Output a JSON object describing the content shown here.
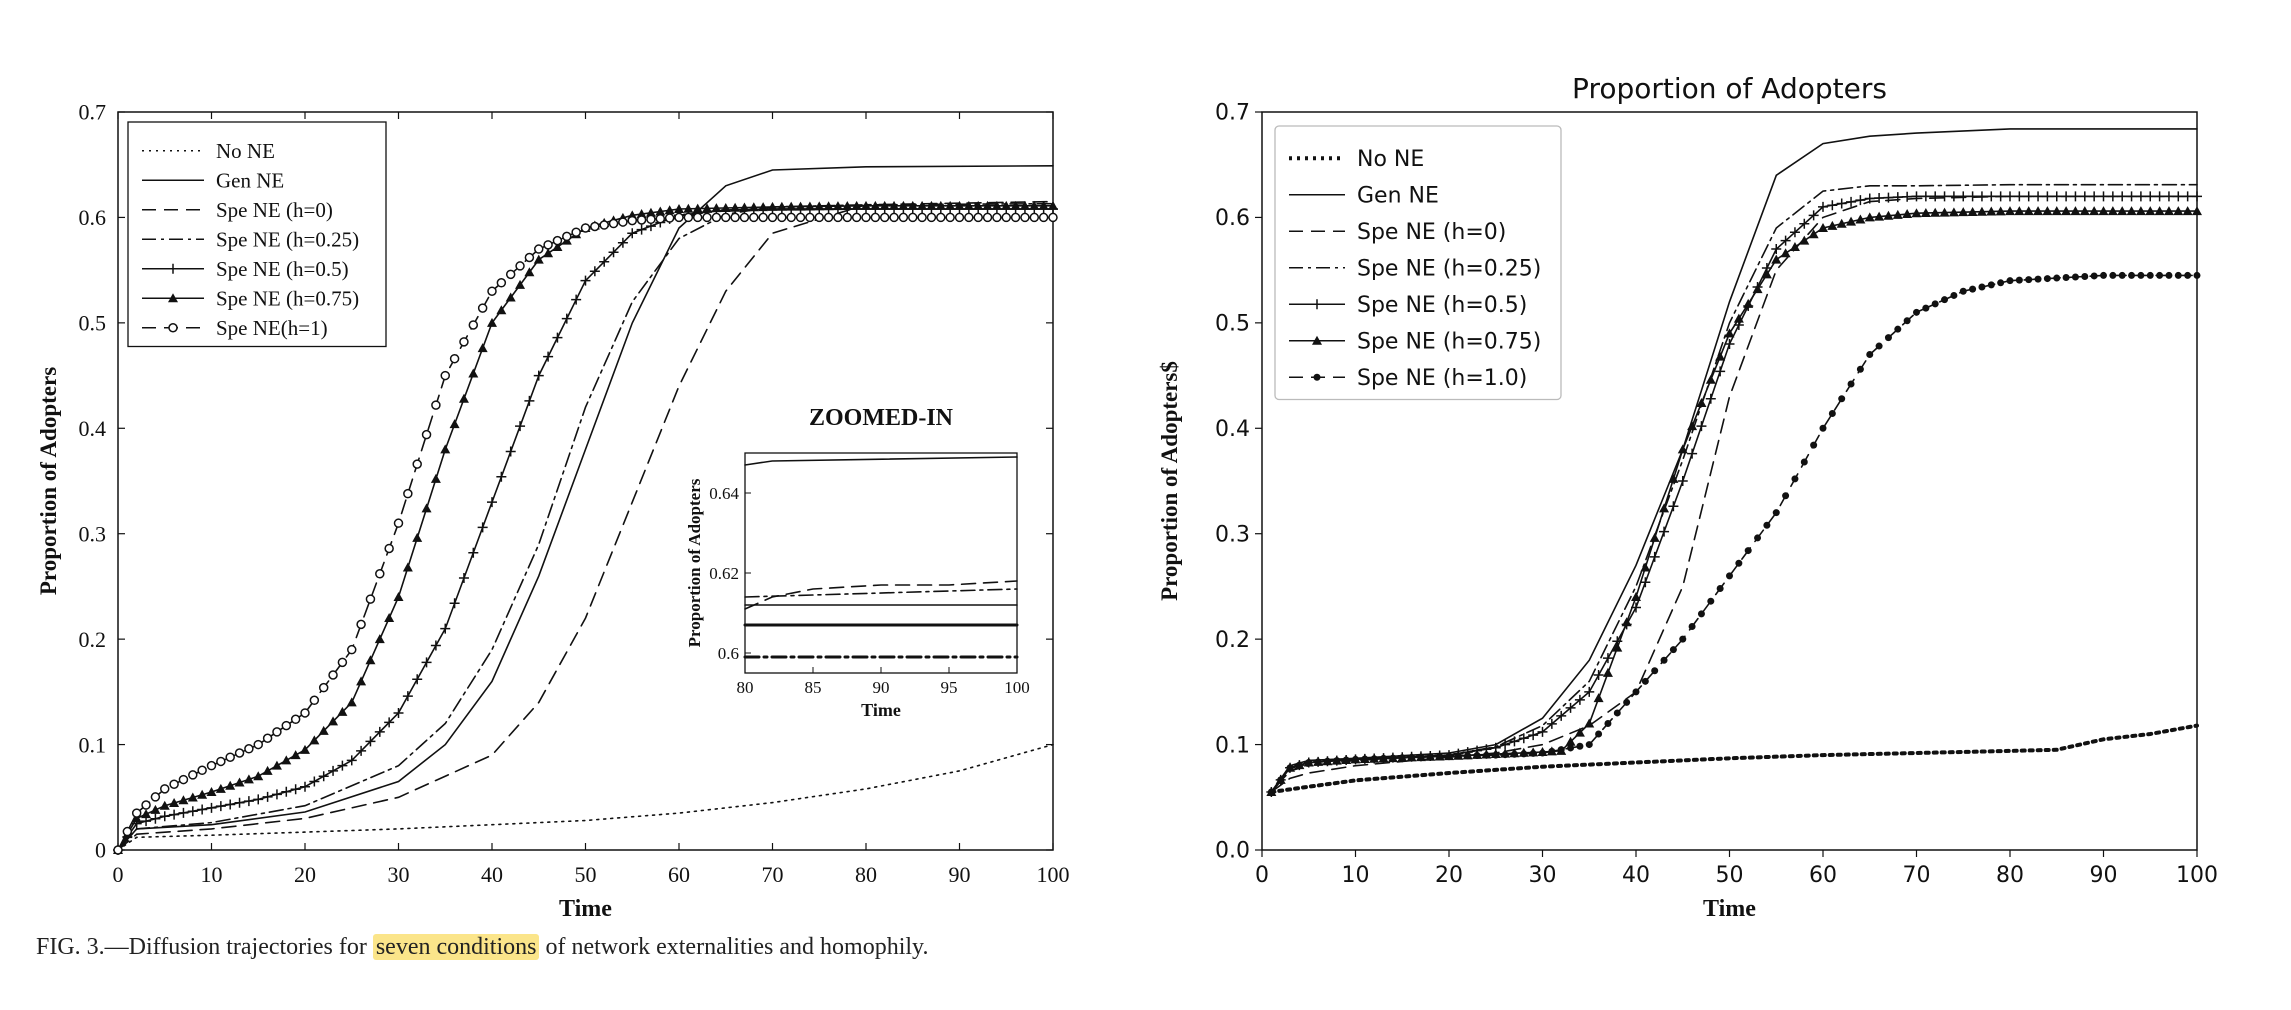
{
  "caption": {
    "prefix": "FIG. 3.—Diffusion trajectories for ",
    "highlight": "seven conditions",
    "suffix": " of network externalities and homophily."
  },
  "colors": {
    "line": "#111111",
    "highlight": "#fbe58a"
  },
  "chart_data": [
    {
      "type": "line",
      "title": "",
      "xlabel": "Time",
      "ylabel": "Proportion of Adopters",
      "xlim": [
        0,
        100
      ],
      "ylim": [
        0,
        0.7
      ],
      "xticks": [
        "0",
        "10",
        "20",
        "30",
        "40",
        "50",
        "60",
        "70",
        "80",
        "90",
        "100"
      ],
      "yticks": [
        "0",
        "0.1",
        "0.2",
        "0.3",
        "0.4",
        "0.5",
        "0.6",
        "0.7"
      ],
      "grid": false,
      "legend_position": "upper-left",
      "series": [
        {
          "name": "No NE",
          "style": "dotted",
          "x": [
            0,
            2,
            10,
            20,
            30,
            40,
            50,
            60,
            70,
            80,
            90,
            100
          ],
          "y": [
            0,
            0.012,
            0.014,
            0.017,
            0.02,
            0.024,
            0.028,
            0.035,
            0.045,
            0.058,
            0.075,
            0.1
          ]
        },
        {
          "name": "Gen NE",
          "style": "solid",
          "x": [
            0,
            2,
            10,
            20,
            30,
            35,
            40,
            45,
            50,
            55,
            60,
            65,
            70,
            80,
            100
          ],
          "y": [
            0,
            0.02,
            0.024,
            0.036,
            0.065,
            0.1,
            0.16,
            0.26,
            0.38,
            0.5,
            0.59,
            0.63,
            0.645,
            0.648,
            0.649
          ]
        },
        {
          "name": "Spe NE (h=0)",
          "style": "dashed",
          "x": [
            0,
            2,
            10,
            20,
            30,
            40,
            45,
            50,
            55,
            60,
            65,
            70,
            80,
            100
          ],
          "y": [
            0,
            0.015,
            0.02,
            0.03,
            0.05,
            0.09,
            0.14,
            0.22,
            0.33,
            0.44,
            0.53,
            0.585,
            0.612,
            0.615
          ]
        },
        {
          "name": "Spe NE (h=0.25)",
          "style": "dashdot",
          "x": [
            0,
            2,
            10,
            20,
            30,
            35,
            40,
            45,
            50,
            55,
            60,
            65,
            70,
            80,
            100
          ],
          "y": [
            0,
            0.02,
            0.026,
            0.042,
            0.08,
            0.12,
            0.19,
            0.29,
            0.42,
            0.52,
            0.58,
            0.603,
            0.61,
            0.612,
            0.613
          ]
        },
        {
          "name": "Spe NE (h=0.5)",
          "style": "solid-plus",
          "x": [
            0,
            2,
            5,
            10,
            15,
            20,
            25,
            30,
            35,
            40,
            45,
            50,
            55,
            60,
            65,
            70,
            80,
            100
          ],
          "y": [
            0,
            0.025,
            0.032,
            0.04,
            0.048,
            0.06,
            0.085,
            0.13,
            0.21,
            0.33,
            0.45,
            0.54,
            0.585,
            0.602,
            0.607,
            0.608,
            0.608,
            0.608
          ]
        },
        {
          "name": "Spe NE (h=0.75)",
          "style": "solid-triangle",
          "x": [
            0,
            2,
            5,
            10,
            15,
            20,
            25,
            30,
            35,
            40,
            45,
            50,
            55,
            60,
            70,
            80,
            100
          ],
          "y": [
            0,
            0.03,
            0.042,
            0.055,
            0.07,
            0.095,
            0.14,
            0.24,
            0.38,
            0.5,
            0.56,
            0.59,
            0.602,
            0.608,
            0.61,
            0.611,
            0.611
          ]
        },
        {
          "name": "Spe NE(h=1)",
          "style": "dashed-circle",
          "x": [
            0,
            2,
            5,
            10,
            15,
            20,
            25,
            30,
            35,
            40,
            45,
            50,
            55,
            60,
            70,
            80,
            100
          ],
          "y": [
            0,
            0.035,
            0.058,
            0.08,
            0.1,
            0.13,
            0.19,
            0.31,
            0.45,
            0.53,
            0.57,
            0.59,
            0.597,
            0.6,
            0.6,
            0.6,
            0.6
          ]
        }
      ],
      "inset": {
        "title": "ZOOMED-IN",
        "xlabel": "Time",
        "ylabel": "Proportion of Adopters",
        "xlim": [
          80,
          100
        ],
        "ylim": [
          0.595,
          0.65
        ],
        "xticks": [
          "80",
          "85",
          "90",
          "95",
          "100"
        ],
        "yticks": [
          "0.6",
          "0.62",
          "0.64"
        ],
        "series": [
          {
            "style": "solid",
            "x": [
              80,
              82,
              100
            ],
            "y": [
              0.647,
              0.648,
              0.649
            ]
          },
          {
            "style": "dashed",
            "x": [
              80,
              82,
              85,
              90,
              95,
              100
            ],
            "y": [
              0.611,
              0.614,
              0.616,
              0.617,
              0.617,
              0.618
            ]
          },
          {
            "style": "dashdot",
            "x": [
              80,
              100
            ],
            "y": [
              0.614,
              0.616
            ]
          },
          {
            "style": "solid",
            "x": [
              80,
              100
            ],
            "y": [
              0.612,
              0.612
            ]
          },
          {
            "style": "solid-thick",
            "x": [
              80,
              100
            ],
            "y": [
              0.607,
              0.607
            ]
          },
          {
            "style": "dashdot-thick",
            "x": [
              80,
              100
            ],
            "y": [
              0.599,
              0.599
            ]
          }
        ]
      }
    },
    {
      "type": "line",
      "title": "Proportion of Adopters",
      "xlabel": "Time",
      "ylabel": "Proportion of Adopters$",
      "xlim": [
        0,
        100
      ],
      "ylim": [
        0,
        0.7
      ],
      "xticks": [
        "0",
        "10",
        "20",
        "30",
        "40",
        "50",
        "60",
        "70",
        "80",
        "90",
        "100"
      ],
      "yticks": [
        "0.0",
        "0.1",
        "0.2",
        "0.3",
        "0.4",
        "0.5",
        "0.6",
        "0.7"
      ],
      "grid": false,
      "legend_position": "upper-left",
      "series": [
        {
          "name": "No NE",
          "style": "dotted-thick",
          "x": [
            1,
            5,
            10,
            20,
            30,
            40,
            50,
            60,
            70,
            80,
            85,
            90,
            95,
            100
          ],
          "y": [
            0.055,
            0.06,
            0.066,
            0.073,
            0.079,
            0.083,
            0.087,
            0.09,
            0.092,
            0.094,
            0.095,
            0.105,
            0.11,
            0.118
          ]
        },
        {
          "name": "Gen NE",
          "style": "solid",
          "x": [
            1,
            3,
            5,
            10,
            20,
            25,
            30,
            35,
            40,
            45,
            50,
            55,
            60,
            65,
            70,
            80,
            100
          ],
          "y": [
            0.055,
            0.08,
            0.085,
            0.087,
            0.092,
            0.1,
            0.125,
            0.18,
            0.27,
            0.38,
            0.52,
            0.64,
            0.67,
            0.677,
            0.68,
            0.684,
            0.684
          ]
        },
        {
          "name": "Spe NE (h=0)",
          "style": "dashed",
          "x": [
            1,
            3,
            5,
            10,
            20,
            25,
            30,
            35,
            40,
            45,
            50,
            55,
            60,
            65,
            70,
            80,
            100
          ],
          "y": [
            0.055,
            0.068,
            0.073,
            0.08,
            0.088,
            0.092,
            0.1,
            0.118,
            0.15,
            0.25,
            0.43,
            0.55,
            0.6,
            0.615,
            0.618,
            0.62,
            0.62
          ]
        },
        {
          "name": "Spe NE (h=0.25)",
          "style": "dashdot",
          "x": [
            1,
            3,
            5,
            10,
            20,
            25,
            30,
            35,
            40,
            45,
            50,
            55,
            60,
            65,
            70,
            80,
            100
          ],
          "y": [
            0.055,
            0.075,
            0.08,
            0.085,
            0.09,
            0.098,
            0.118,
            0.16,
            0.25,
            0.37,
            0.5,
            0.59,
            0.625,
            0.63,
            0.63,
            0.631,
            0.631
          ]
        },
        {
          "name": "Spe NE (h=0.5)",
          "style": "solid-plus",
          "x": [
            1,
            3,
            5,
            10,
            20,
            25,
            30,
            35,
            40,
            45,
            50,
            55,
            60,
            65,
            70,
            80,
            100
          ],
          "y": [
            0.055,
            0.078,
            0.083,
            0.086,
            0.09,
            0.097,
            0.112,
            0.15,
            0.23,
            0.35,
            0.48,
            0.57,
            0.61,
            0.618,
            0.62,
            0.62,
            0.62
          ]
        },
        {
          "name": "Spe NE (h=0.75)",
          "style": "solid-triangle",
          "x": [
            1,
            3,
            5,
            10,
            20,
            25,
            30,
            32,
            35,
            40,
            45,
            50,
            55,
            60,
            65,
            70,
            80,
            100
          ],
          "y": [
            0.055,
            0.078,
            0.083,
            0.086,
            0.089,
            0.091,
            0.093,
            0.094,
            0.12,
            0.24,
            0.38,
            0.49,
            0.56,
            0.59,
            0.6,
            0.604,
            0.606,
            0.606
          ]
        },
        {
          "name": "Spe NE (h=1.0)",
          "style": "dashed-dot",
          "x": [
            1,
            3,
            5,
            10,
            20,
            25,
            30,
            35,
            40,
            45,
            50,
            55,
            60,
            65,
            70,
            75,
            80,
            90,
            100
          ],
          "y": [
            0.055,
            0.078,
            0.083,
            0.086,
            0.089,
            0.09,
            0.092,
            0.1,
            0.15,
            0.2,
            0.26,
            0.32,
            0.4,
            0.47,
            0.51,
            0.53,
            0.54,
            0.545,
            0.545
          ]
        }
      ]
    }
  ]
}
